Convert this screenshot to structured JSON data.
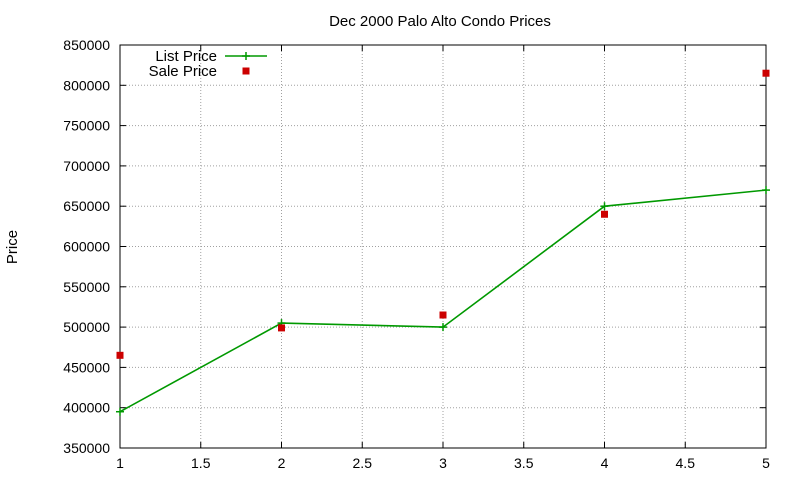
{
  "chart_data": {
    "type": "line",
    "title": "Dec 2000 Palo Alto Condo Prices",
    "xlabel": "",
    "ylabel": "Price",
    "xlim": [
      1,
      5
    ],
    "ylim": [
      350000,
      850000
    ],
    "x_ticks": [
      "1",
      "1.5",
      "2",
      "2.5",
      "3",
      "3.5",
      "4",
      "4.5",
      "5"
    ],
    "y_ticks": [
      "350000",
      "400000",
      "450000",
      "500000",
      "550000",
      "600000",
      "650000",
      "700000",
      "750000",
      "800000",
      "850000"
    ],
    "grid": true,
    "legend_position": "top-left",
    "series": [
      {
        "name": "List Price",
        "style": "linespoints",
        "color": "#009900",
        "marker": "plus",
        "x": [
          1,
          2,
          3,
          4,
          5
        ],
        "y": [
          395000,
          505000,
          500000,
          650000,
          670000
        ]
      },
      {
        "name": "Sale Price",
        "style": "points",
        "color": "#cc0000",
        "marker": "square",
        "x": [
          1,
          2,
          3,
          4,
          5
        ],
        "y": [
          465000,
          499000,
          515000,
          640000,
          815000
        ]
      }
    ]
  }
}
